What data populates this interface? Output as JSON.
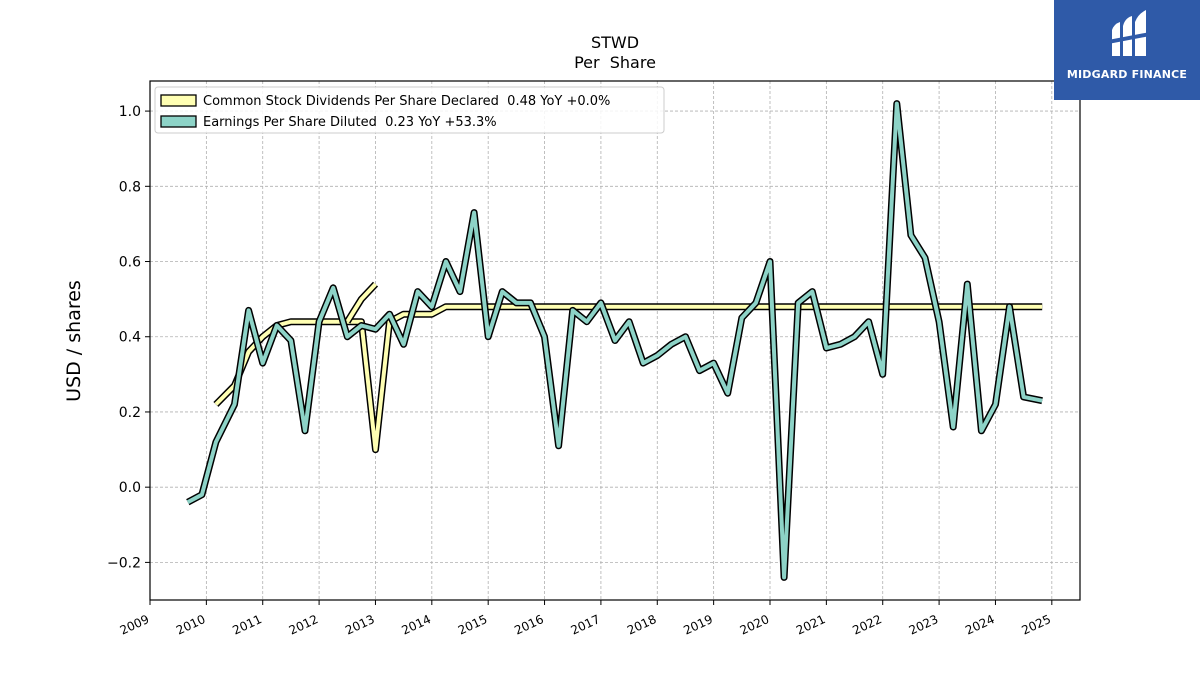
{
  "brand": {
    "name": "MIDGARD FINANCE",
    "color": "#2f5aa8"
  },
  "chart_data": {
    "type": "line",
    "title": "STWD",
    "subtitle": "Per  Share",
    "ylabel": "USD / shares",
    "xlabel": "",
    "xlim": [
      2009,
      2025.5
    ],
    "ylim": [
      -0.3,
      1.08
    ],
    "x_ticks": [
      "2009",
      "2010",
      "2011",
      "2012",
      "2013",
      "2014",
      "2015",
      "2016",
      "2017",
      "2018",
      "2019",
      "2020",
      "2021",
      "2022",
      "2023",
      "2024",
      "2025"
    ],
    "y_ticks": [
      "−0.2",
      "0.0",
      "0.2",
      "0.4",
      "0.6",
      "0.8",
      "1.0"
    ],
    "y_tick_values": [
      -0.2,
      0.0,
      0.2,
      0.4,
      0.6,
      0.8,
      1.0
    ],
    "grid": true,
    "legend_position": "top-left",
    "series": [
      {
        "name": "Common Stock Dividends Per Share Declared  0.48 YoY +0.0%",
        "color": "#ffffb3",
        "points": [
          [
            2010.17,
            0.22
          ],
          [
            2010.5,
            0.27
          ],
          [
            2010.75,
            0.36
          ],
          [
            2011.0,
            0.4
          ],
          [
            2011.25,
            0.43
          ],
          [
            2011.5,
            0.44
          ],
          [
            2011.75,
            0.44
          ],
          [
            2012.0,
            0.44
          ],
          [
            2012.25,
            0.44
          ],
          [
            2012.5,
            0.44
          ],
          [
            2012.75,
            0.44
          ],
          [
            2013.0,
            0.1
          ],
          [
            2013.25,
            0.44
          ],
          [
            2013.5,
            0.46
          ],
          [
            2013.75,
            0.46
          ],
          [
            2014.0,
            0.46
          ],
          [
            2014.25,
            0.48
          ],
          [
            2014.5,
            0.48
          ],
          [
            2014.75,
            0.48
          ],
          [
            2015.0,
            0.48
          ],
          [
            2015.5,
            0.48
          ],
          [
            2016.0,
            0.48
          ],
          [
            2016.5,
            0.48
          ],
          [
            2017.0,
            0.48
          ],
          [
            2017.5,
            0.48
          ],
          [
            2018.0,
            0.48
          ],
          [
            2018.5,
            0.48
          ],
          [
            2019.0,
            0.48
          ],
          [
            2019.5,
            0.48
          ],
          [
            2020.0,
            0.48
          ],
          [
            2020.5,
            0.48
          ],
          [
            2021.0,
            0.48
          ],
          [
            2021.5,
            0.48
          ],
          [
            2022.0,
            0.48
          ],
          [
            2022.5,
            0.48
          ],
          [
            2023.0,
            0.48
          ],
          [
            2023.5,
            0.48
          ],
          [
            2024.0,
            0.48
          ],
          [
            2024.5,
            0.48
          ],
          [
            2024.83,
            0.48
          ]
        ],
        "extra_points": [
          [
            2012.5,
            0.44
          ],
          [
            2012.75,
            0.5
          ],
          [
            2013.0,
            0.54
          ]
        ]
      },
      {
        "name": "Earnings Per Share Diluted  0.23 YoY +53.3%",
        "color": "#8dd3c7",
        "points": [
          [
            2009.67,
            -0.04
          ],
          [
            2009.92,
            -0.02
          ],
          [
            2010.17,
            0.12
          ],
          [
            2010.5,
            0.22
          ],
          [
            2010.75,
            0.47
          ],
          [
            2011.0,
            0.33
          ],
          [
            2011.25,
            0.43
          ],
          [
            2011.5,
            0.39
          ],
          [
            2011.75,
            0.15
          ],
          [
            2012.0,
            0.44
          ],
          [
            2012.25,
            0.53
          ],
          [
            2012.5,
            0.4
          ],
          [
            2012.75,
            0.43
          ],
          [
            2013.0,
            0.42
          ],
          [
            2013.25,
            0.46
          ],
          [
            2013.5,
            0.38
          ],
          [
            2013.75,
            0.52
          ],
          [
            2014.0,
            0.48
          ],
          [
            2014.25,
            0.6
          ],
          [
            2014.5,
            0.52
          ],
          [
            2014.75,
            0.73
          ],
          [
            2015.0,
            0.4
          ],
          [
            2015.25,
            0.52
          ],
          [
            2015.5,
            0.49
          ],
          [
            2015.75,
            0.49
          ],
          [
            2016.0,
            0.4
          ],
          [
            2016.25,
            0.11
          ],
          [
            2016.5,
            0.47
          ],
          [
            2016.75,
            0.44
          ],
          [
            2017.0,
            0.49
          ],
          [
            2017.25,
            0.39
          ],
          [
            2017.5,
            0.44
          ],
          [
            2017.75,
            0.33
          ],
          [
            2018.0,
            0.35
          ],
          [
            2018.25,
            0.38
          ],
          [
            2018.5,
            0.4
          ],
          [
            2018.75,
            0.31
          ],
          [
            2019.0,
            0.33
          ],
          [
            2019.25,
            0.25
          ],
          [
            2019.5,
            0.45
          ],
          [
            2019.75,
            0.49
          ],
          [
            2020.0,
            0.6
          ],
          [
            2020.25,
            -0.24
          ],
          [
            2020.5,
            0.49
          ],
          [
            2020.75,
            0.52
          ],
          [
            2021.0,
            0.37
          ],
          [
            2021.25,
            0.38
          ],
          [
            2021.5,
            0.4
          ],
          [
            2021.75,
            0.44
          ],
          [
            2022.0,
            0.3
          ],
          [
            2022.25,
            1.02
          ],
          [
            2022.5,
            0.67
          ],
          [
            2022.75,
            0.61
          ],
          [
            2023.0,
            0.44
          ],
          [
            2023.25,
            0.16
          ],
          [
            2023.5,
            0.54
          ],
          [
            2023.75,
            0.15
          ],
          [
            2024.0,
            0.22
          ],
          [
            2024.25,
            0.48
          ],
          [
            2024.5,
            0.24
          ],
          [
            2024.83,
            0.23
          ]
        ]
      }
    ]
  }
}
